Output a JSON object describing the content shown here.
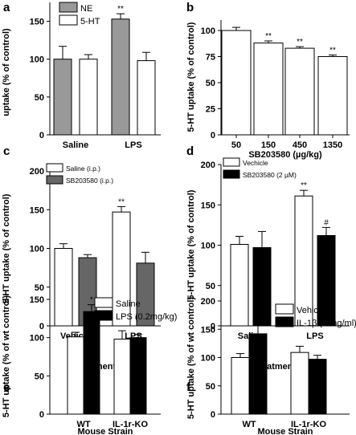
{
  "chart_data": [
    {
      "panel": "a",
      "type": "bar",
      "categories": [
        "Saline",
        "LPS"
      ],
      "series": [
        {
          "name": "NE",
          "values": [
            100,
            153
          ],
          "errors": [
            17,
            7
          ],
          "color": "#999999"
        },
        {
          "name": "5-HT",
          "values": [
            100,
            98
          ],
          "errors": [
            6,
            11
          ],
          "color": "#ffffff"
        }
      ],
      "annotations": [
        {
          "category": 1,
          "series": 0,
          "text": "**"
        }
      ],
      "ylabel": "uptake (% of control)",
      "xlabel": "",
      "ylim": [
        0,
        175
      ],
      "yticks": [
        "0",
        "50",
        "100",
        "150"
      ],
      "legend": "top-left"
    },
    {
      "panel": "b",
      "type": "bar",
      "categories": [
        "50",
        "150",
        "450",
        "1350"
      ],
      "series": [
        {
          "values": [
            100,
            88,
            83,
            75
          ],
          "errors": [
            3,
            2,
            1.5,
            1.5
          ],
          "color": "#ffffff"
        }
      ],
      "annotations": [
        {
          "category": 1,
          "series": 0,
          "text": "**"
        },
        {
          "category": 2,
          "series": 0,
          "text": "**"
        },
        {
          "category": 3,
          "series": 0,
          "text": "**"
        }
      ],
      "ylabel": "5-HT uptake (% of control)",
      "xlabel": "SB203580 (µg/kg)",
      "ylim": [
        0,
        110
      ],
      "yticks": [
        "0",
        "25",
        "50",
        "75",
        "100"
      ],
      "legend": "none"
    },
    {
      "panel": "c",
      "type": "bar",
      "categories": [
        "Vehicle",
        "LPS"
      ],
      "series": [
        {
          "name": "Saline (i.p.)",
          "values": [
            100,
            147
          ],
          "errors": [
            6,
            7
          ],
          "color": "#ffffff"
        },
        {
          "name": "SB203580 (i.p.)",
          "values": [
            88,
            81
          ],
          "errors": [
            4,
            14
          ],
          "color": "#666666"
        }
      ],
      "annotations": [
        {
          "category": 1,
          "series": 0,
          "text": "**"
        }
      ],
      "ylabel": "5-HT uptake (% of control)",
      "xlabel": "Treatment (i.p.)",
      "ylim": [
        0,
        200
      ],
      "yticks": [
        "0",
        "50",
        "100",
        "150",
        "200"
      ],
      "legend": "top-left"
    },
    {
      "panel": "d",
      "type": "bar",
      "categories": [
        "Saline",
        "LPS"
      ],
      "series": [
        {
          "name": "Vechicle",
          "values": [
            101,
            161
          ],
          "errors": [
            10,
            7
          ],
          "color": "#ffffff"
        },
        {
          "name": "SB203580 (2 µM)",
          "values": [
            97,
            112
          ],
          "errors": [
            20,
            10
          ],
          "color": "#000000"
        }
      ],
      "annotations": [
        {
          "category": 1,
          "series": 0,
          "text": "**"
        },
        {
          "category": 1,
          "series": 1,
          "text": "#"
        }
      ],
      "ylabel": "5-HT uptake (% of control)",
      "xlabel": "Treatment (i.p.)",
      "ylim": [
        0,
        200
      ],
      "yticks": [
        "0",
        "50",
        "100",
        "150",
        "200"
      ],
      "legend": "top-left"
    },
    {
      "panel": "e",
      "type": "bar",
      "categories": [
        "WT",
        "IL-1r-KO"
      ],
      "series": [
        {
          "name": "Saline",
          "values": [
            101,
            98
          ],
          "errors": [
            6,
            11
          ],
          "color": "#ffffff"
        },
        {
          "name": "LPS (0.2mg/kg)",
          "values": [
            134,
            100
          ],
          "errors": [
            9,
            4
          ],
          "color": "#000000"
        }
      ],
      "annotations": [
        {
          "category": 0,
          "series": 1,
          "text": "*"
        }
      ],
      "ylabel": "5-HT uptake (% of wt control)",
      "xlabel": "Mouse Strain",
      "ylim": [
        0,
        150
      ],
      "yticks": [
        "0",
        "50",
        "100",
        "150"
      ],
      "legend": "top-right"
    },
    {
      "panel": "f",
      "type": "bar",
      "categories": [
        "WT",
        "IL-1r-KO"
      ],
      "series": [
        {
          "name": "Vehicle",
          "values": [
            100,
            109
          ],
          "errors": [
            7,
            11
          ],
          "color": "#ffffff"
        },
        {
          "name": "IL-1β (10ng/ml)",
          "values": [
            142,
            97
          ],
          "errors": [
            20,
            7
          ],
          "color": "#000000"
        }
      ],
      "annotations": [
        {
          "category": 0,
          "series": 1,
          "text": "*"
        }
      ],
      "ylabel": "5-HT uptake (% of wt control)",
      "xlabel": "Mouse Strain",
      "ylim": [
        0,
        200
      ],
      "yticks": [
        "0",
        "50",
        "100",
        "150",
        "200"
      ],
      "legend": "top-right"
    }
  ]
}
